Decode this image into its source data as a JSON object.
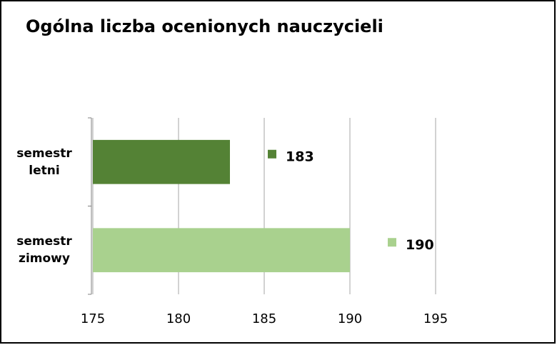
{
  "chart_data": {
    "type": "barh",
    "title": "Ogólna liczba ocenionych nauczycieli",
    "categories": [
      "semestr letni",
      "semestr zimowy"
    ],
    "values": [
      183,
      190
    ],
    "colors": [
      "#548235",
      "#a9d18e"
    ],
    "xlim": [
      175,
      195
    ],
    "xticks": [
      175,
      180,
      185,
      190,
      195
    ],
    "grid": true
  }
}
